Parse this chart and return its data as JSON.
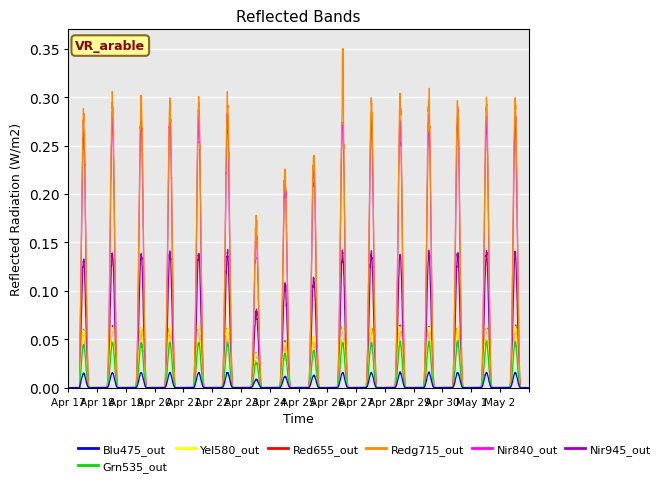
{
  "title": "Reflected Bands",
  "xlabel": "Time",
  "ylabel": "Reflected Radiation (W/m2)",
  "annotation_text": "VR_arable",
  "annotation_bg": "#ffff99",
  "annotation_border": "#8b6914",
  "ylim": [
    0.0,
    0.37
  ],
  "yticks": [
    0.0,
    0.05,
    0.1,
    0.15,
    0.2,
    0.25,
    0.3,
    0.35
  ],
  "bg_color": "#e8e8e8",
  "fig_bg": "#ffffff",
  "band_order": [
    "Blu475_out",
    "Grn535_out",
    "Yel580_out",
    "Red655_out",
    "Redg715_out",
    "Nir840_out",
    "Nir945_out"
  ],
  "band_colors": {
    "Blu475_out": "#0000ff",
    "Grn535_out": "#00dd00",
    "Yel580_out": "#ffff00",
    "Red655_out": "#ff0000",
    "Redg715_out": "#ff8800",
    "Nir840_out": "#ff00ff",
    "Nir945_out": "#9900bb"
  },
  "band_peaks": {
    "Blu475_out": 0.015,
    "Grn535_out": 0.045,
    "Yel580_out": 0.06,
    "Red655_out": 0.06,
    "Redg715_out": 0.288,
    "Nir840_out": 0.27,
    "Nir945_out": 0.135
  },
  "day_mults": [
    0.95,
    1.0,
    1.0,
    1.0,
    1.0,
    1.0,
    0.55,
    0.75,
    0.82,
    1.0,
    1.0,
    1.0,
    1.0,
    1.0,
    1.0,
    1.0
  ],
  "date_labels": [
    "Apr 17",
    "Apr 18",
    "Apr 19",
    "Apr 20",
    "Apr 21",
    "Apr 22",
    "Apr 23",
    "Apr 24",
    "Apr 25",
    "Apr 26",
    "Apr 27",
    "Apr 28",
    "Apr 29",
    "Apr 30",
    "May 1",
    "May 2"
  ],
  "grid_color": "#ffffff",
  "grid_lw": 1.0,
  "legend_order": [
    "Blu475_out",
    "Grn535_out",
    "Yel580_out",
    "Red655_out",
    "Redg715_out",
    "Nir840_out",
    "Nir945_out"
  ]
}
